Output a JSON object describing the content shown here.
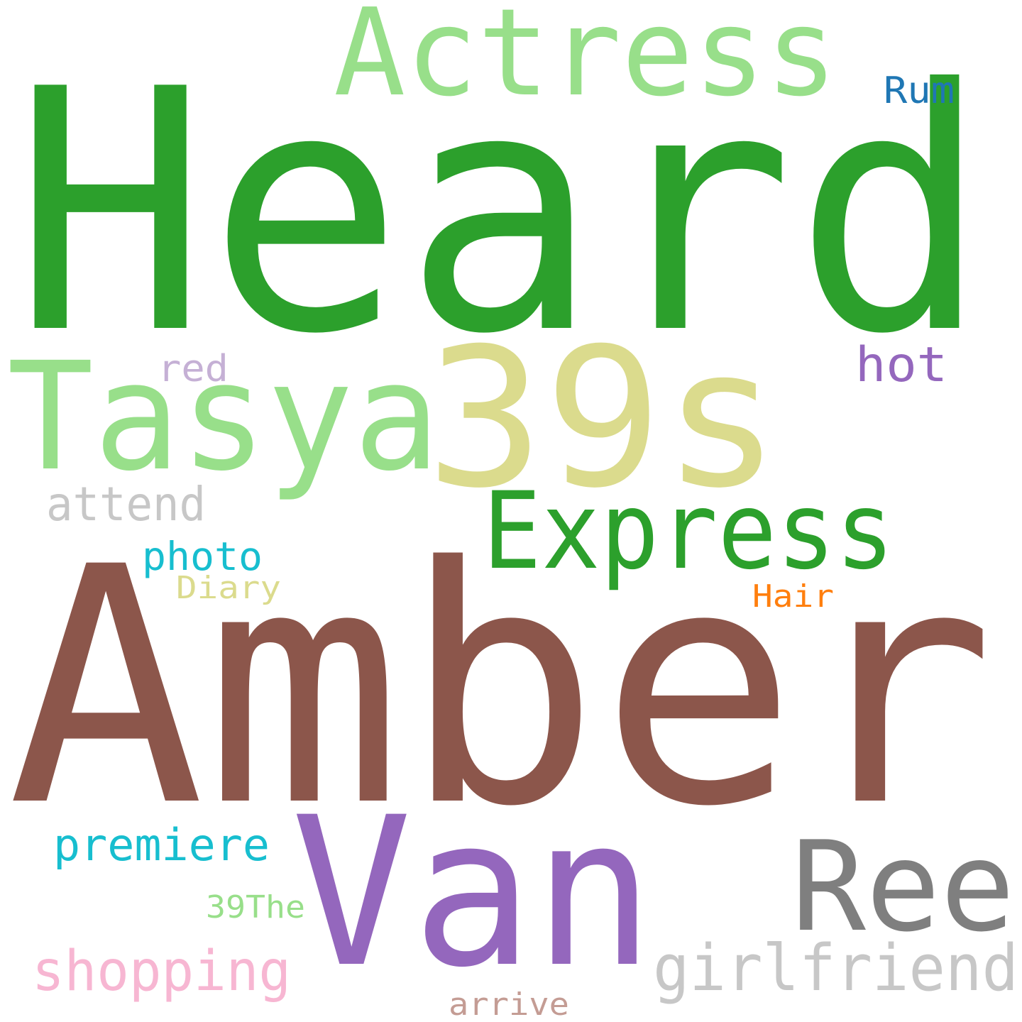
{
  "words": [
    {
      "text": "Heard",
      "color": "#2ca02c"
    },
    {
      "text": "Amber",
      "color": "#8c564b"
    },
    {
      "text": "Van",
      "color": "#9467bd"
    },
    {
      "text": "39s",
      "color": "#dbdb8d"
    },
    {
      "text": "Tasya",
      "color": "#98df8a"
    },
    {
      "text": "Actress",
      "color": "#98df8a"
    },
    {
      "text": "Express",
      "color": "#2ca02c"
    },
    {
      "text": "Ree",
      "color": "#7f7f7f"
    },
    {
      "text": "girlfriend",
      "color": "#c7c7c7"
    },
    {
      "text": "shopping",
      "color": "#f7b6d2"
    },
    {
      "text": "premiere",
      "color": "#17becf"
    },
    {
      "text": "attend",
      "color": "#c7c7c7"
    },
    {
      "text": "hot",
      "color": "#9467bd"
    },
    {
      "text": "photo",
      "color": "#17becf"
    },
    {
      "text": "Rum",
      "color": "#1f77b4"
    },
    {
      "text": "red",
      "color": "#c5b0d5"
    },
    {
      "text": "Diary",
      "color": "#dbdb8d"
    },
    {
      "text": "Hair",
      "color": "#ff7f0e"
    },
    {
      "text": "39The",
      "color": "#98df8a"
    },
    {
      "text": "arrive",
      "color": "#c49c94"
    }
  ]
}
